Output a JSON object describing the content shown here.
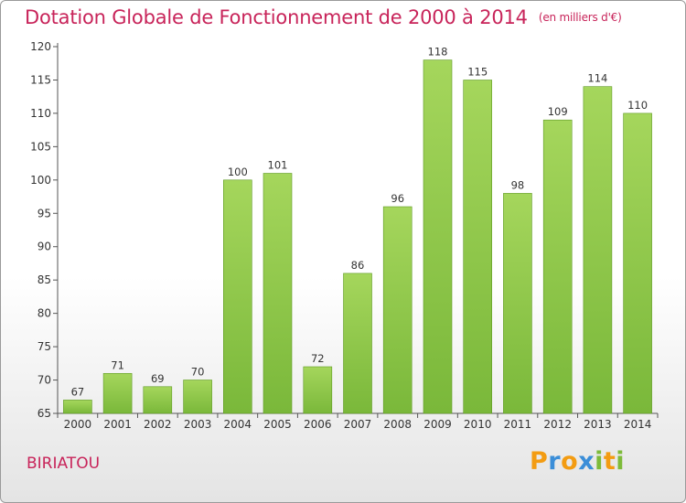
{
  "header": {
    "title": "Dotation Globale de Fonctionnement de 2000 à 2014",
    "unit": "(en milliers d'€)"
  },
  "commune": "BIRIATOU",
  "logo": {
    "text": "Proxiti",
    "letters": [
      {
        "char": "P",
        "color": "#f39c12"
      },
      {
        "char": "r",
        "color": "#3b8ed8"
      },
      {
        "char": "o",
        "color": "#f39c12"
      },
      {
        "char": "x",
        "color": "#3b8ed8"
      },
      {
        "char": "i",
        "color": "#7dbb3a"
      },
      {
        "char": "t",
        "color": "#f39c12"
      },
      {
        "char": "i",
        "color": "#7dbb3a"
      }
    ]
  },
  "chart_data": {
    "type": "bar",
    "title": "Dotation Globale de Fonctionnement de 2000 à 2014",
    "subtitle": "(en milliers d'€)",
    "categories": [
      "2000",
      "2001",
      "2002",
      "2003",
      "2004",
      "2005",
      "2006",
      "2007",
      "2008",
      "2009",
      "2010",
      "2011",
      "2012",
      "2013",
      "2014"
    ],
    "values": [
      67,
      71,
      69,
      70,
      100,
      101,
      72,
      86,
      96,
      118,
      115,
      98,
      109,
      114,
      110
    ],
    "ylim": [
      65,
      120
    ],
    "yticks": [
      65,
      70,
      75,
      80,
      85,
      90,
      95,
      100,
      105,
      110,
      115,
      120
    ],
    "grid": false,
    "bar_color": "#7ab83a",
    "bar_color_light": "#a5d65c"
  }
}
